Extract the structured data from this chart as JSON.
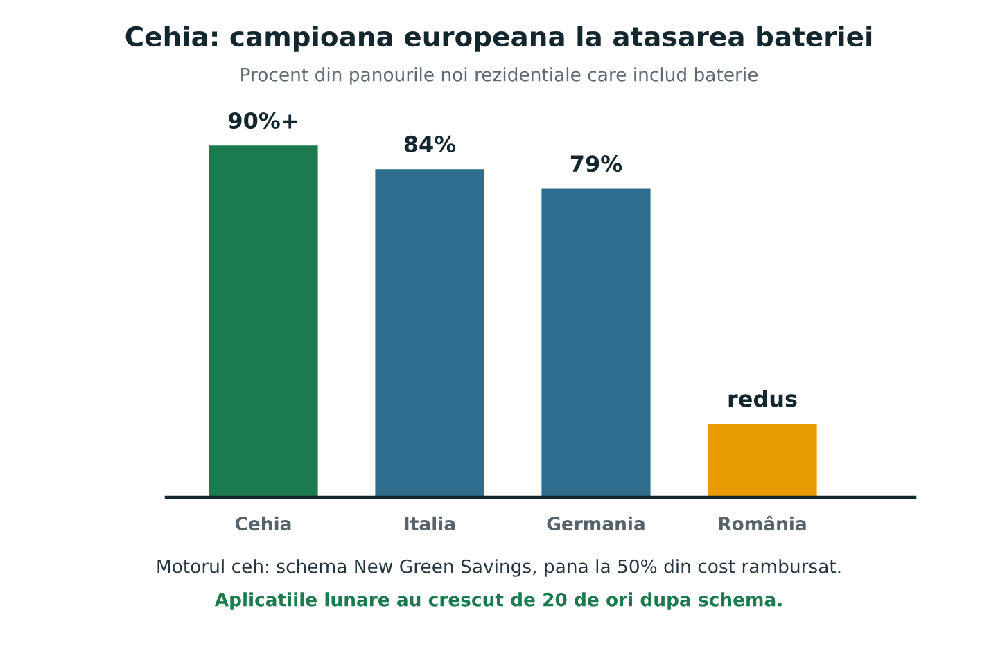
{
  "chart_data": {
    "type": "bar",
    "title": "Cehia: campioana europeana la atasarea bateriei",
    "subtitle": "Procent din panourile noi rezidentiale care includ baterie",
    "categories": [
      "Cehia",
      "Italia",
      "Germania",
      "România"
    ],
    "values": [
      90,
      84,
      79,
      19
    ],
    "colors": [
      "#1b7a4e",
      "#2e6d8e",
      "#2e6d8e",
      "#e89c00"
    ],
    "value_labels": [
      "90%+",
      "84%",
      "79%",
      "redus"
    ],
    "grid": false,
    "annotations": [
      "Motorul ceh: schema New Green Savings, pana la 50% din cost rambursat.",
      "Aplicatiile lunare au crescut de 20 de ori dupa schema."
    ]
  }
}
